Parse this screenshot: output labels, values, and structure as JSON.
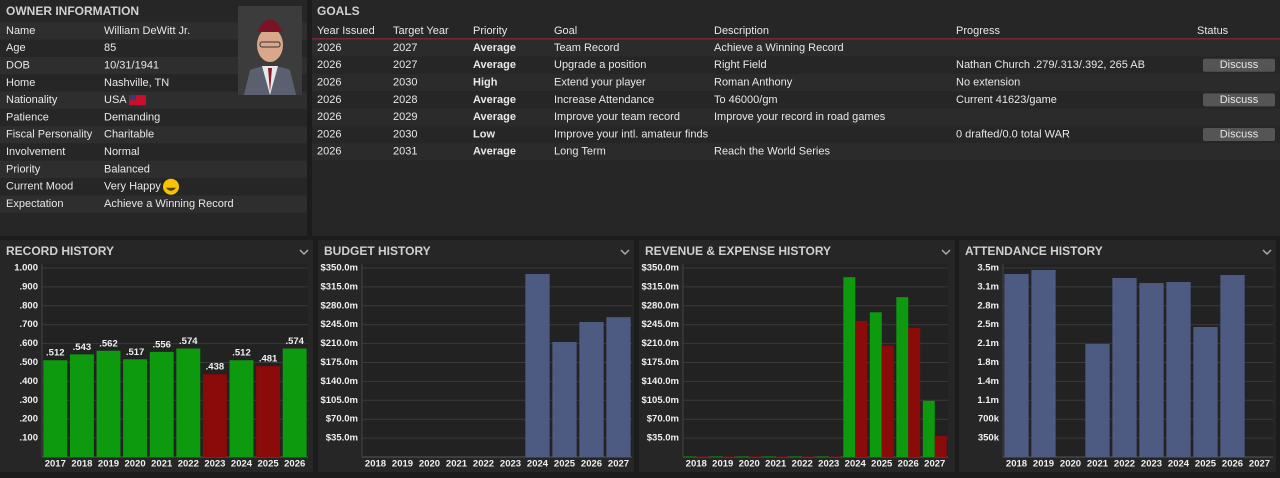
{
  "owner": {
    "title": "OWNER INFORMATION",
    "rows": [
      {
        "label": "Name",
        "value": "William DeWitt Jr.",
        "value_color": "#ffffff"
      },
      {
        "label": "Age",
        "value": "85",
        "value_color": "#ffffff"
      },
      {
        "label": "DOB",
        "value": "10/31/1941",
        "value_color": "#ffffff"
      },
      {
        "label": "Home",
        "value": "Nashville, TN",
        "value_color": "#ffffff"
      },
      {
        "label": "Nationality",
        "value": "USA",
        "value_color": "#ffffff"
      },
      {
        "label": "Patience",
        "value": "Demanding",
        "value_color": "#f5a623"
      },
      {
        "label": "Fiscal Personality",
        "value": "Charitable",
        "value_color": "#2ec4a6"
      },
      {
        "label": "Involvement",
        "value": "Normal",
        "value_color": "#4cd137"
      },
      {
        "label": "Priority",
        "value": "Balanced",
        "value_color": "#4cd137"
      },
      {
        "label": "Current Mood",
        "value": "Very Happy",
        "value_color": "#ffffff"
      },
      {
        "label": "Expectation",
        "value": "Achieve a Winning Record",
        "value_color": "#4cd137"
      }
    ]
  },
  "goals": {
    "title": "GOALS",
    "columns": [
      "Year Issued",
      "Target Year",
      "Priority",
      "Goal",
      "Description",
      "Progress",
      "Status"
    ],
    "rows": [
      [
        2026,
        2027,
        "Average",
        "Team Record",
        "Achieve a Winning Record",
        null,
        null
      ],
      [
        2026,
        2027,
        "Average",
        "Upgrade a position",
        "Right Field",
        "Nathan Church .279/.313/.392, 265 AB",
        "Discuss"
      ],
      [
        2026,
        2030,
        "High",
        "Extend your player",
        "Roman Anthony",
        "No extension",
        null
      ],
      [
        2026,
        2028,
        "Average",
        "Increase Attendance",
        "To 46000/gm",
        "Current 41623/game",
        "Discuss"
      ],
      [
        2026,
        2029,
        "Average",
        "Improve your team record",
        "Improve your record in road games",
        null,
        null
      ],
      [
        2026,
        2030,
        "Low",
        "Improve your intl. amateur finds",
        null,
        "0 drafted/0.0 total WAR",
        "Discuss"
      ],
      [
        2026,
        2031,
        "Average",
        "Long Term",
        "Reach the World Series",
        null,
        null
      ]
    ],
    "priority_colors": [
      "#4cd137",
      "#4cd137",
      "#2ec4a6",
      "#4cd137",
      "#4cd137",
      "#f5a623",
      "#4cd137"
    ]
  },
  "chart_data": [
    {
      "type": "bar",
      "title": "RECORD HISTORY",
      "categories": [
        "2017",
        "2018",
        "2019",
        "2020",
        "2021",
        "2022",
        "2023",
        "2024",
        "2025",
        "2026"
      ],
      "values": [
        0.512,
        0.543,
        0.562,
        0.517,
        0.556,
        0.574,
        0.438,
        0.512,
        0.481,
        0.574
      ],
      "value_labels": [
        ".512",
        ".543",
        ".562",
        ".517",
        ".556",
        ".574",
        ".438",
        ".512",
        ".481",
        ".574"
      ],
      "colors": [
        "#0e9a0e",
        "#0e9a0e",
        "#0e9a0e",
        "#0e9a0e",
        "#0e9a0e",
        "#0e9a0e",
        "#8b0a0a",
        "#0e9a0e",
        "#8b0a0a",
        "#0e9a0e"
      ],
      "ylim": [
        0,
        1
      ],
      "yticks": [
        {
          "value": 0.1,
          "label": ".100"
        },
        {
          "value": 0.2,
          "label": ".200"
        },
        {
          "value": 0.3,
          "label": ".300"
        },
        {
          "value": 0.4,
          "label": ".400"
        },
        {
          "value": 0.5,
          "label": ".500"
        },
        {
          "value": 0.6,
          "label": ".600"
        },
        {
          "value": 0.7,
          "label": ".700"
        },
        {
          "value": 0.8,
          "label": ".800"
        },
        {
          "value": 0.9,
          "label": ".900"
        },
        {
          "value": 1,
          "label": "1.000"
        }
      ],
      "grid": true
    },
    {
      "type": "bar",
      "title": "BUDGET HISTORY",
      "categories": [
        "2018",
        "2019",
        "2020",
        "2021",
        "2022",
        "2023",
        "2024",
        "2025",
        "2026",
        "2027"
      ],
      "values": [
        0,
        0,
        0,
        0,
        0,
        0,
        339,
        213,
        250,
        259
      ],
      "color": "#4d5b82",
      "ylim": [
        0,
        350
      ],
      "yticks": [
        {
          "value": 35,
          "label": "$35.0m"
        },
        {
          "value": 70,
          "label": "$70.0m"
        },
        {
          "value": 105,
          "label": "$105.0m"
        },
        {
          "value": 140,
          "label": "$140.0m"
        },
        {
          "value": 175,
          "label": "$175.0m"
        },
        {
          "value": 210,
          "label": "$210.0m"
        },
        {
          "value": 245,
          "label": "$245.0m"
        },
        {
          "value": 280,
          "label": "$280.0m"
        },
        {
          "value": 315,
          "label": "$315.0m"
        },
        {
          "value": 350,
          "label": "$350.0m"
        }
      ],
      "grid": true
    },
    {
      "type": "bar",
      "title": "REVENUE & EXPENSE HISTORY",
      "categories": [
        "2018",
        "2019",
        "2020",
        "2021",
        "2022",
        "2023",
        "2024",
        "2025",
        "2026",
        "2027"
      ],
      "series": [
        {
          "color": "#0e9a0e",
          "values": [
            1,
            1,
            1,
            1,
            1,
            1,
            333,
            268,
            296,
            104
          ]
        },
        {
          "color": "#8b0a0a",
          "values": [
            1,
            1,
            1,
            1,
            1,
            1,
            252,
            206,
            239,
            39
          ]
        }
      ],
      "ylim": [
        0,
        350
      ],
      "yticks": [
        {
          "value": 35,
          "label": "$35.0m"
        },
        {
          "value": 70,
          "label": "$70.0m"
        },
        {
          "value": 105,
          "label": "$105.0m"
        },
        {
          "value": 140,
          "label": "$140.0m"
        },
        {
          "value": 175,
          "label": "$175.0m"
        },
        {
          "value": 210,
          "label": "$210.0m"
        },
        {
          "value": 245,
          "label": "$245.0m"
        },
        {
          "value": 280,
          "label": "$280.0m"
        },
        {
          "value": 315,
          "label": "$315.0m"
        },
        {
          "value": 350,
          "label": "$350.0m"
        }
      ],
      "grid": true
    },
    {
      "type": "bar",
      "title": "ATTENDANCE HISTORY",
      "categories": [
        "2018",
        "2019",
        "2020",
        "2021",
        "2022",
        "2023",
        "2024",
        "2025",
        "2026",
        "2027"
      ],
      "values": [
        3390000,
        3463000,
        0,
        2093000,
        3315000,
        3222000,
        3241000,
        2407000,
        3370000,
        0
      ],
      "color": "#4d5b82",
      "ylim": [
        0,
        3500000
      ],
      "yticks": [
        {
          "value": 350000,
          "label": "350k"
        },
        {
          "value": 700000,
          "label": "700k"
        },
        {
          "value": 1050000,
          "label": "1.1m"
        },
        {
          "value": 1400000,
          "label": "1.4m"
        },
        {
          "value": 1750000,
          "label": "1.8m"
        },
        {
          "value": 2100000,
          "label": "2.1m"
        },
        {
          "value": 2450000,
          "label": "2.5m"
        },
        {
          "value": 2800000,
          "label": "2.8m"
        },
        {
          "value": 3150000,
          "label": "3.1m"
        },
        {
          "value": 3500000,
          "label": "3.5m"
        }
      ],
      "grid": true
    }
  ]
}
